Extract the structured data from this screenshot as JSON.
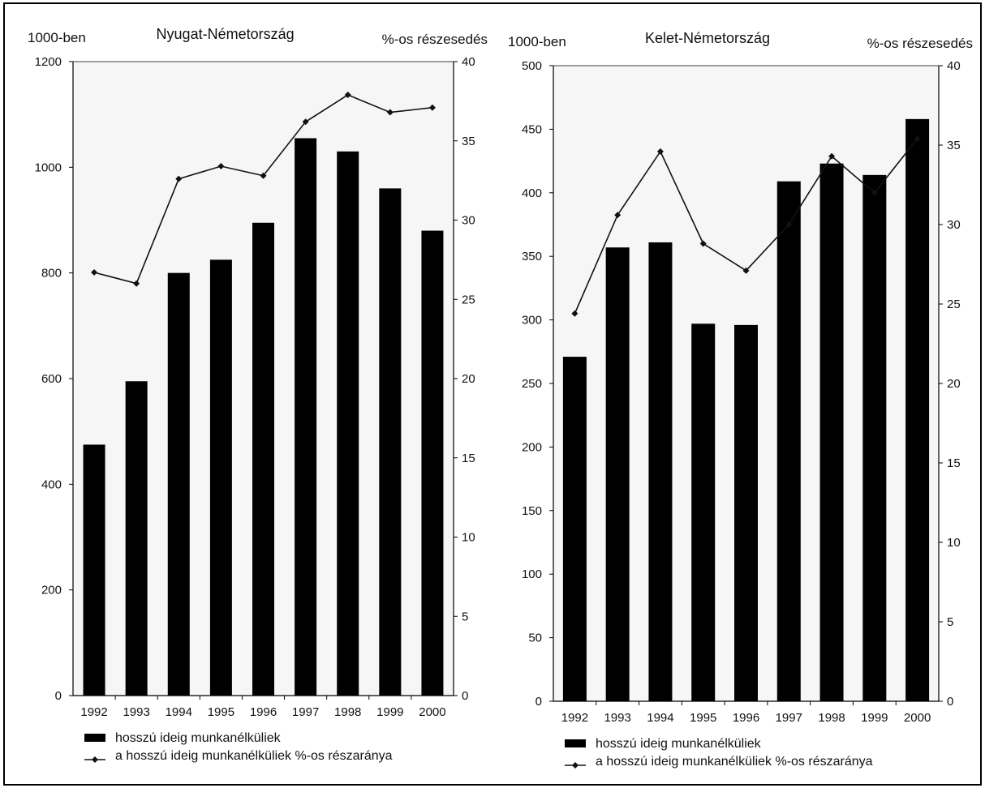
{
  "chart_data": [
    {
      "type": "bar+line",
      "title": "Nyugat-Németország",
      "ylabel_left": "1000-ben",
      "ylabel_right": "%-os részesedés",
      "ylim_left": [
        0,
        1200
      ],
      "ylim_right": [
        0,
        40
      ],
      "yticks_left": [
        "0",
        "200",
        "400",
        "600",
        "800",
        "1000",
        "1200"
      ],
      "yticks_right": [
        "0",
        "5",
        "10",
        "15",
        "20",
        "25",
        "30",
        "35",
        "40"
      ],
      "categories": [
        "1992",
        "1993",
        "1994",
        "1995",
        "1996",
        "1997",
        "1998",
        "1999",
        "2000"
      ],
      "series": [
        {
          "name": "hosszú ideig munkanélküliek",
          "type": "bar",
          "axis": "left",
          "values": [
            475,
            595,
            800,
            825,
            895,
            1055,
            1030,
            960,
            880
          ]
        },
        {
          "name": "a hosszú ideig munkanélküliek %-os részaránya",
          "type": "line",
          "axis": "right",
          "values": [
            26.7,
            26.0,
            32.6,
            33.4,
            32.8,
            36.2,
            37.9,
            36.8,
            37.1
          ]
        }
      ],
      "grid": false,
      "legend_position": "bottom-left"
    },
    {
      "type": "bar+line",
      "title": "Kelet-Németország",
      "ylabel_left": "1000-ben",
      "ylabel_right": "%-os részesedés",
      "ylim_left": [
        0,
        500
      ],
      "ylim_right": [
        0,
        40
      ],
      "yticks_left": [
        "0",
        "50",
        "100",
        "150",
        "200",
        "250",
        "300",
        "350",
        "400",
        "450",
        "500"
      ],
      "yticks_right": [
        "0",
        "5",
        "10",
        "15",
        "20",
        "25",
        "30",
        "35",
        "40"
      ],
      "categories": [
        "1992",
        "1993",
        "1994",
        "1995",
        "1996",
        "1997",
        "1998",
        "1999",
        "2000"
      ],
      "series": [
        {
          "name": "hosszú ideig munkanélküliek",
          "type": "bar",
          "axis": "left",
          "values": [
            271,
            357,
            361,
            297,
            296,
            409,
            423,
            414,
            458
          ]
        },
        {
          "name": "a hosszú ideig munkanélküliek %-os részaránya",
          "type": "line",
          "axis": "right",
          "values": [
            24.4,
            30.6,
            34.6,
            28.8,
            27.1,
            30.0,
            34.3,
            32.0,
            35.4
          ]
        }
      ],
      "grid": false,
      "legend_position": "bottom-left"
    }
  ],
  "colors": {
    "bar": "#000000",
    "line": "#111111",
    "axis": "#000000",
    "shade": "#e6e6e6"
  }
}
